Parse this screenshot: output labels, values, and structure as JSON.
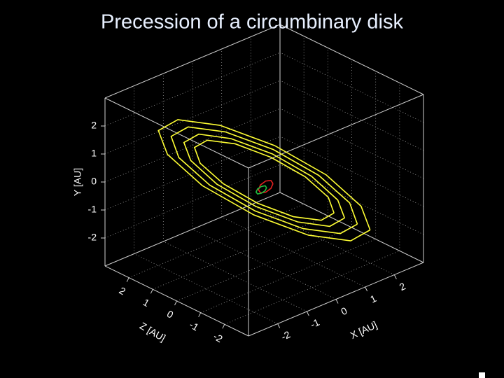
{
  "chart_data": {
    "type": "line3d",
    "title": "Precession of a circumbinary disk",
    "xlabel": "X [AU]",
    "ylabel": "Y [AU]",
    "zlabel": "Z [AU]",
    "xlim": [
      -3,
      3
    ],
    "ylim": [
      -3,
      3
    ],
    "zlim": [
      -3,
      3
    ],
    "xticks": [
      -2,
      -1,
      0,
      1,
      2
    ],
    "yticks": [
      -2,
      -1,
      0,
      1,
      2
    ],
    "zticks": [
      -2,
      -1,
      0,
      1,
      2
    ],
    "grid": true,
    "series": [
      {
        "color": "#ffff33",
        "x": [
          2.4,
          2.54,
          2.01,
          0.93,
          -0.4,
          -1.61,
          -2.4,
          -2.54,
          -2.01,
          -0.93,
          0.4,
          1.61,
          2.4
        ],
        "y": [
          -2.2,
          -1.64,
          -0.63,
          0.54,
          1.57,
          2.18,
          2.2,
          1.64,
          0.63,
          -0.54,
          -1.57,
          -2.18,
          -2.2
        ],
        "z": [
          -1.5,
          -0.95,
          -0.14,
          0.7,
          1.36,
          1.65,
          1.5,
          0.95,
          0.14,
          -0.7,
          -1.36,
          -1.65,
          -1.5
        ]
      },
      {
        "color": "#ffff33",
        "x": [
          2.11,
          2.24,
          1.77,
          0.82,
          -0.35,
          -1.42,
          -2.11,
          -2.24,
          -1.77,
          -0.82,
          0.35,
          1.42,
          2.11
        ],
        "y": [
          -1.94,
          -1.44,
          -0.55,
          0.48,
          1.38,
          1.92,
          1.94,
          1.44,
          0.55,
          -0.48,
          -1.38,
          -1.92,
          -1.94
        ],
        "z": [
          -1.32,
          -0.84,
          -0.12,
          0.62,
          1.2,
          1.45,
          1.32,
          0.84,
          0.12,
          -0.62,
          -1.2,
          -1.45,
          -1.32
        ]
      },
      {
        "color": "#ffff33",
        "x": [
          1.82,
          1.93,
          1.53,
          0.71,
          -0.3,
          -1.22,
          -1.82,
          -1.93,
          -1.53,
          -0.71,
          0.3,
          1.22,
          1.82
        ],
        "y": [
          -1.67,
          -1.25,
          -0.48,
          0.41,
          1.19,
          1.66,
          1.67,
          1.25,
          0.48,
          -0.41,
          -1.19,
          -1.66,
          -1.67
        ],
        "z": [
          -1.14,
          -0.72,
          -0.11,
          0.53,
          1.03,
          1.25,
          1.14,
          0.72,
          0.11,
          -0.53,
          -1.03,
          -1.25,
          -1.14
        ]
      },
      {
        "color": "#ffff33",
        "x": [
          1.58,
          1.68,
          1.33,
          0.61,
          -0.26,
          -1.06,
          -1.58,
          -1.68,
          -1.33,
          -0.61,
          0.26,
          1.06,
          1.58
        ],
        "y": [
          -1.45,
          -1.08,
          -0.42,
          0.36,
          1.04,
          1.44,
          1.45,
          1.08,
          0.42,
          -0.36,
          -1.04,
          -1.44,
          -1.45
        ],
        "z": [
          -0.99,
          -0.63,
          -0.09,
          0.46,
          0.9,
          1.09,
          0.99,
          0.63,
          0.09,
          -0.46,
          -0.9,
          -1.09,
          -0.99
        ]
      },
      {
        "color": "#e02020",
        "x": [
          0.3,
          0.23,
          0.05,
          -0.13,
          -0.2,
          -0.13,
          0.05,
          0.23,
          0.3
        ],
        "y": [
          -0.25,
          -0.11,
          -0.05,
          -0.11,
          -0.25,
          -0.39,
          -0.45,
          -0.39,
          -0.25
        ],
        "z": [
          0,
          0,
          0,
          0,
          0,
          0,
          0,
          0,
          0
        ]
      },
      {
        "color": "#20c040",
        "x": [
          0.08,
          0.03,
          -0.1,
          -0.23,
          -0.28,
          -0.23,
          -0.1,
          0.03,
          0.08
        ],
        "y": [
          -0.3,
          -0.21,
          -0.18,
          -0.21,
          -0.3,
          -0.39,
          -0.42,
          -0.39,
          -0.3
        ],
        "z": [
          0,
          0,
          0,
          0,
          0,
          0,
          0,
          0,
          0
        ]
      }
    ]
  }
}
